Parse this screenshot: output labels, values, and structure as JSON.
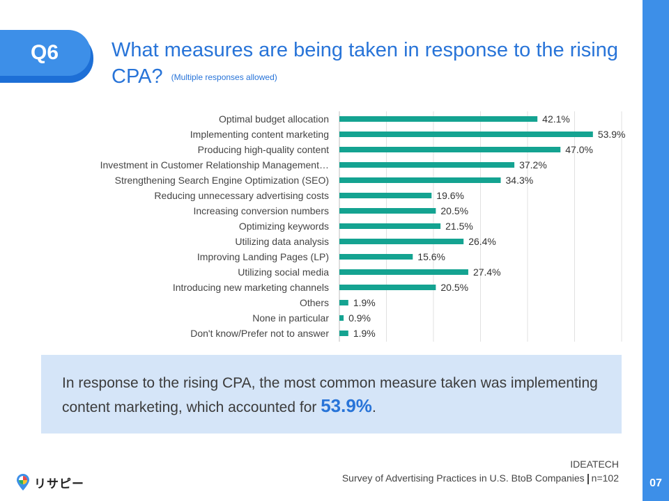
{
  "badge": "Q6",
  "title": "What measures are being taken in response to the rising CPA?",
  "title_note": "(Multiple responses allowed)",
  "chart_data": {
    "type": "bar",
    "orientation": "horizontal",
    "categories": [
      "Optimal budget allocation",
      "Implementing content marketing",
      "Producing high-quality content",
      "Investment in Customer Relationship Management…",
      "Strengthening Search Engine Optimization (SEO)",
      "Reducing unnecessary advertising costs",
      "Increasing conversion numbers",
      "Optimizing keywords",
      "Utilizing data analysis",
      "Improving Landing Pages (LP)",
      "Utilizing social media",
      "Introducing new marketing channels",
      "Others",
      "None in particular",
      "Don't know/Prefer not to answer"
    ],
    "values": [
      42.1,
      53.9,
      47.0,
      37.2,
      34.3,
      19.6,
      20.5,
      21.5,
      26.4,
      15.6,
      27.4,
      20.5,
      1.9,
      0.9,
      1.9
    ],
    "value_labels": [
      "42.1%",
      "53.9%",
      "47.0%",
      "37.2%",
      "34.3%",
      "19.6%",
      "20.5%",
      "21.5%",
      "26.4%",
      "15.6%",
      "27.4%",
      "20.5%",
      "1.9%",
      "0.9%",
      "1.9%"
    ],
    "xlim": [
      0,
      60
    ],
    "grid": true,
    "bar_color": "#14a391"
  },
  "summary": {
    "text_before": "In response to the rising CPA, the most common measure taken was implementing content marketing, which accounted for ",
    "highlight": "53.9%",
    "text_after": "."
  },
  "source": {
    "org": "IDEATECH",
    "survey": "Survey of Advertising Practices in U.S. BtoB Companies",
    "n": "n=102"
  },
  "logo": {
    "text": "リサピー",
    "icon": "pin-logo-icon"
  },
  "page_number": "07",
  "colors": {
    "accent": "#3d8fe8",
    "title": "#2874d8",
    "summary_bg": "#d5e5f8"
  }
}
